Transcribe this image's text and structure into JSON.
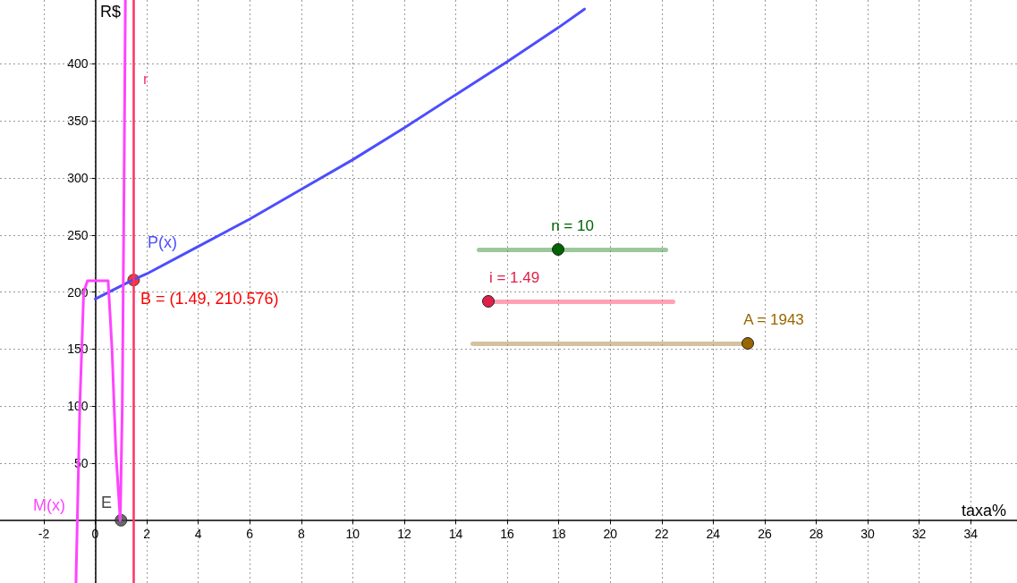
{
  "chart_data": {
    "type": "line",
    "xlabel": "taxa%",
    "ylabel": "R$",
    "xlim": [
      -3.7,
      35.8
    ],
    "ylim": [
      -55,
      456
    ],
    "xticks": [
      -2,
      0,
      2,
      4,
      6,
      8,
      10,
      12,
      14,
      16,
      18,
      20,
      22,
      24,
      26,
      28,
      30,
      32,
      34
    ],
    "yticks": [
      50,
      100,
      150,
      200,
      250,
      300,
      350,
      400
    ],
    "grid": true,
    "marker": "none",
    "series": [
      {
        "name": "P(x)",
        "color": "#4d4dff",
        "x": [
          0,
          1.49,
          2,
          4,
          6,
          8,
          10,
          12,
          14,
          16,
          18,
          19
        ],
        "values": [
          194,
          211,
          216,
          240,
          264,
          290,
          316,
          344,
          373,
          402,
          432,
          448
        ]
      },
      {
        "name": "M(x)",
        "color": "#ff44ff",
        "x": [
          -0.75,
          -0.6,
          -0.45,
          -0.3,
          0.5,
          0.65,
          0.8,
          0.97,
          1.05,
          1.12,
          1.17
        ],
        "values": [
          -55,
          100,
          200,
          210,
          210,
          150,
          60,
          0,
          100,
          300,
          456
        ]
      },
      {
        "name": "B = (1.49, 210.576)",
        "type": "scatter",
        "marker": "circle",
        "color": "#ff0000",
        "x": [
          1.49
        ],
        "values": [
          210.576
        ]
      },
      {
        "name": "E",
        "type": "scatter",
        "marker": "circle",
        "color": "#444444",
        "x": [
          1
        ],
        "values": [
          0
        ]
      }
    ],
    "ref_lines": [
      {
        "axis": "x",
        "value": 1.49,
        "label": "r",
        "color": "#ff3366"
      }
    ],
    "annotations": [
      "n = 10",
      "i = 1.49",
      "A = 1943"
    ]
  }
}
